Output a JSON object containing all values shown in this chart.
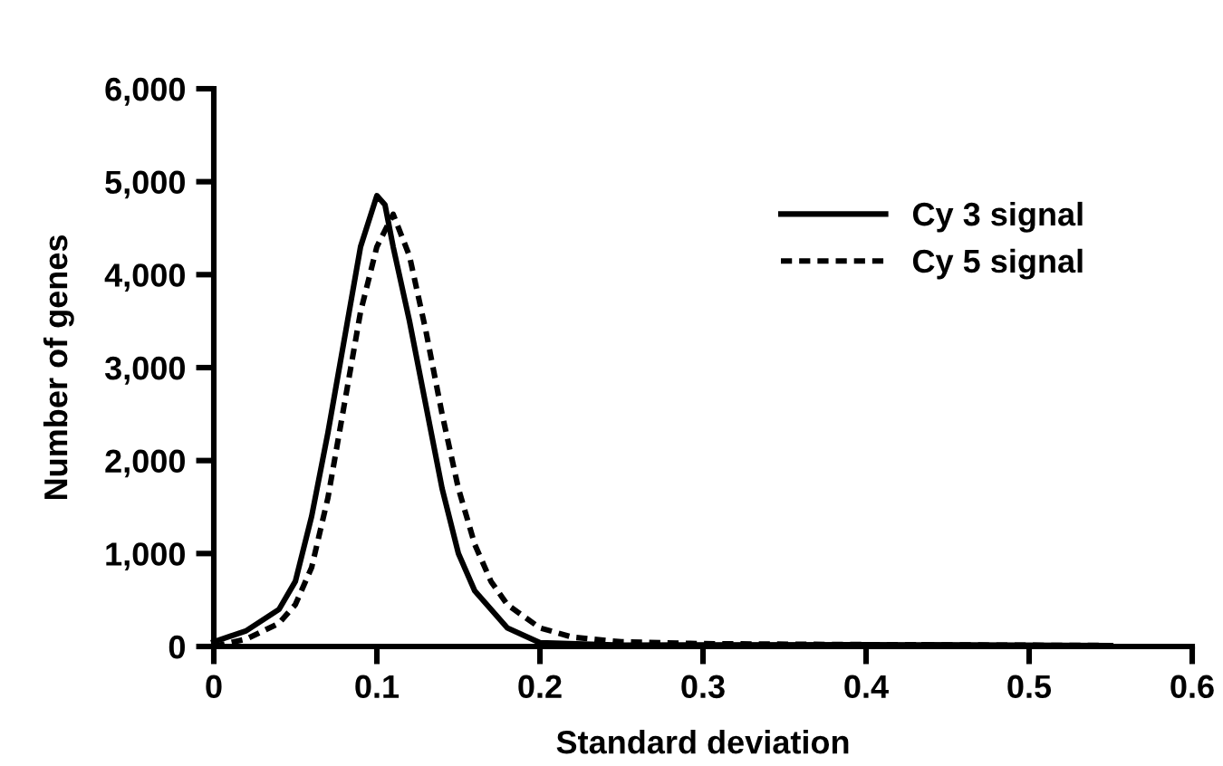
{
  "chart_data": {
    "type": "line",
    "xlabel": "Standard deviation",
    "ylabel": "Number of genes",
    "xlim": [
      0,
      0.6
    ],
    "xticks": [
      0,
      0.1,
      0.2,
      0.3,
      0.4,
      0.5,
      0.6
    ],
    "ylim": [
      0,
      6000
    ],
    "yticks": [
      {
        "value": 0,
        "label": "0"
      },
      {
        "value": 1000,
        "label": "1,000"
      },
      {
        "value": 2000,
        "label": "2,000"
      },
      {
        "value": 3000,
        "label": "3,000"
      },
      {
        "value": 4000,
        "label": "4,000"
      },
      {
        "value": 5000,
        "label": "5,000"
      },
      {
        "value": 6000,
        "label": "6,000"
      }
    ],
    "grid": false,
    "legend": "top right",
    "marker": "none",
    "series": [
      {
        "name": "Cy 3 signal",
        "color": "#000000",
        "line_style": "solid",
        "x": [
          0,
          0.02,
          0.04,
          0.05,
          0.06,
          0.07,
          0.08,
          0.09,
          0.1,
          0.105,
          0.11,
          0.12,
          0.13,
          0.14,
          0.15,
          0.16,
          0.18,
          0.2,
          0.25,
          0.4,
          0.55
        ],
        "values": [
          50,
          170,
          400,
          700,
          1400,
          2300,
          3300,
          4300,
          4850,
          4750,
          4300,
          3500,
          2600,
          1700,
          1000,
          600,
          200,
          40,
          15,
          20,
          10
        ]
      },
      {
        "name": "Cy 5 signal",
        "color": "#000000",
        "line_style": "dotted",
        "x": [
          0,
          0.02,
          0.04,
          0.05,
          0.06,
          0.07,
          0.08,
          0.09,
          0.1,
          0.11,
          0.12,
          0.13,
          0.14,
          0.15,
          0.16,
          0.17,
          0.18,
          0.2,
          0.22,
          0.25,
          0.3,
          0.4,
          0.55
        ],
        "values": [
          0,
          80,
          250,
          450,
          850,
          1600,
          2600,
          3600,
          4300,
          4650,
          4200,
          3400,
          2500,
          1700,
          1100,
          700,
          450,
          200,
          100,
          50,
          30,
          20,
          10
        ]
      }
    ]
  }
}
